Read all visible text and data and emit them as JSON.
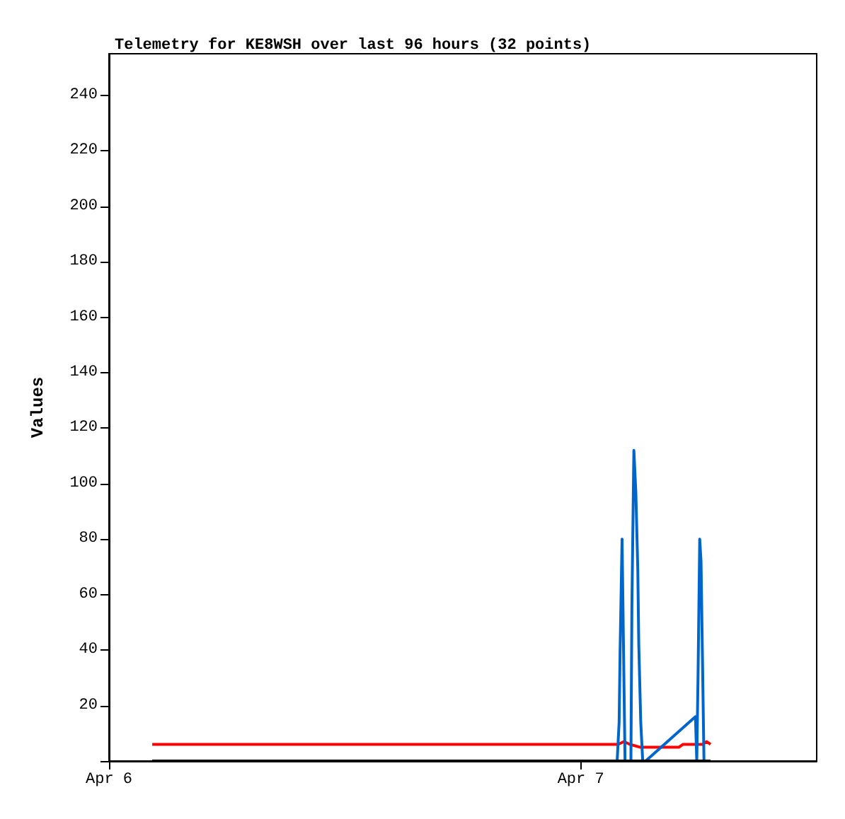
{
  "chart_data": {
    "type": "line",
    "title": "Telemetry for KE8WSH over last 96 hours (32 points)",
    "ylabel": "Values",
    "xlim": [
      "--04-06",
      "--04-07T12:00"
    ],
    "xticks": [
      {
        "value": "--04-06",
        "label": "Apr 6"
      },
      {
        "value": "--04-07",
        "label": "Apr 7"
      }
    ],
    "ylim": [
      0,
      255
    ],
    "yticks": [
      {
        "value": 0,
        "label": null
      },
      20,
      40,
      60,
      80,
      100,
      120,
      140,
      160,
      180,
      200,
      220,
      240
    ],
    "grid": false,
    "marker": "none",
    "line_style": "solid",
    "series": [
      {
        "color": "#ff0000",
        "x": [
          "--04-06T02:12",
          "--04-07T01:54",
          "--04-07T02:12",
          "--04-07T02:30",
          "--04-07T03:00",
          "--04-07T05:00",
          "--04-07T05:12",
          "--04-07T06:12",
          "--04-07T06:24",
          "--04-07T06:36"
        ],
        "values": [
          6,
          6,
          7,
          6,
          5,
          5,
          6,
          6,
          7,
          6
        ]
      },
      {
        "color": "#0066cc",
        "x": [
          "--04-07T01:51",
          "--04-07T01:57",
          "--04-07T02:00",
          "--04-07T02:06",
          "--04-07T02:15",
          "--04-07T02:33",
          "--04-07T02:36",
          "--04-07T02:42",
          "--04-07T02:48",
          "--04-07T02:54",
          "--04-07T02:57",
          "--04-07T03:03",
          "--04-07T03:09",
          "--04-07T03:18",
          "--04-07T05:50",
          "--04-07T05:54",
          "--04-07T05:58",
          "--04-07T06:03",
          "--04-07T06:07",
          "--04-07T06:16"
        ],
        "values": [
          0,
          14,
          40,
          80,
          0,
          0,
          56,
          112,
          97,
          69,
          42,
          14,
          0,
          0,
          16,
          0,
          32,
          80,
          72,
          0
        ]
      },
      {
        "color": "#000000",
        "x": [
          "--04-06T02:12",
          "--04-07T06:36"
        ],
        "values": [
          0,
          0
        ]
      }
    ]
  }
}
